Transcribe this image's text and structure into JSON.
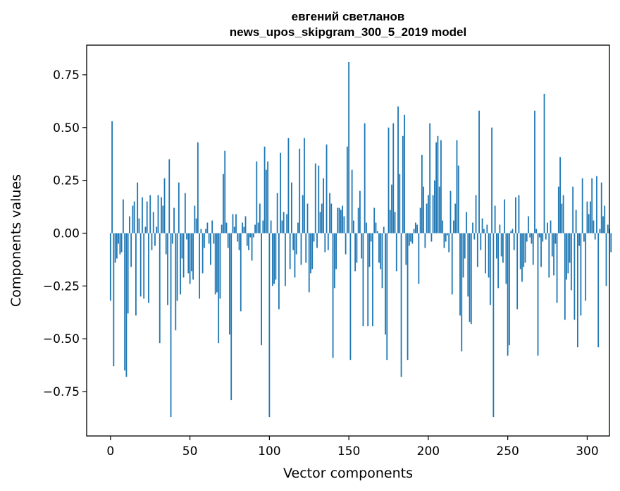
{
  "chart_data": {
    "type": "bar",
    "title_lines": [
      "евгений светланов",
      "news_upos_skipgram_300_5_2019 model"
    ],
    "xlabel": "Vector components",
    "ylabel": "Components values",
    "xlim": [
      -15,
      314
    ],
    "ylim": [
      -0.96,
      0.89
    ],
    "xticks": [
      0,
      50,
      100,
      150,
      200,
      250,
      300
    ],
    "xtick_labels": [
      "0",
      "50",
      "100",
      "150",
      "200",
      "250",
      "300"
    ],
    "yticks": [
      -0.75,
      -0.5,
      -0.25,
      0.0,
      0.25,
      0.5,
      0.75
    ],
    "ytick_labels": [
      "−0.75",
      "−0.50",
      "−0.25",
      "0.00",
      "0.25",
      "0.50",
      "0.75"
    ],
    "bar_color": "#1f77b4",
    "bar_width": 0.8,
    "values": [
      -0.32,
      0.53,
      -0.63,
      -0.14,
      -0.12,
      -0.05,
      -0.1,
      -0.09,
      0.16,
      -0.65,
      -0.68,
      -0.38,
      0.08,
      -0.16,
      0.13,
      0.15,
      -0.39,
      0.24,
      0.07,
      -0.3,
      0.17,
      -0.31,
      0.03,
      0.15,
      -0.33,
      0.18,
      -0.08,
      0.1,
      -0.06,
      0.03,
      0.18,
      -0.52,
      0.17,
      0.13,
      0.26,
      -0.1,
      -0.34,
      0.35,
      -0.87,
      -0.05,
      0.12,
      -0.46,
      -0.32,
      0.24,
      -0.29,
      -0.12,
      -0.21,
      0.19,
      -0.03,
      -0.19,
      -0.24,
      -0.18,
      -0.22,
      0.13,
      0.07,
      0.43,
      -0.31,
      0.02,
      -0.19,
      -0.07,
      0.02,
      0.05,
      -0.05,
      -0.15,
      0.06,
      -0.05,
      -0.29,
      -0.28,
      -0.52,
      -0.31,
      0.04,
      0.28,
      0.39,
      0.05,
      -0.07,
      -0.48,
      -0.79,
      0.09,
      0.03,
      0.09,
      -0.04,
      -0.08,
      -0.37,
      0.05,
      0.03,
      0.08,
      -0.06,
      -0.08,
      -0.02,
      -0.13,
      -0.02,
      0.04,
      0.34,
      0.05,
      0.14,
      -0.53,
      0.06,
      0.41,
      0.3,
      0.34,
      -0.87,
      0.06,
      -0.25,
      -0.24,
      -0.22,
      0.19,
      -0.36,
      0.38,
      0.06,
      0.1,
      -0.25,
      0.09,
      0.45,
      -0.17,
      0.24,
      -0.08,
      -0.21,
      -0.1,
      0.05,
      0.4,
      -0.15,
      0.18,
      0.45,
      -0.14,
      0.14,
      -0.28,
      -0.19,
      -0.17,
      -0.04,
      0.33,
      -0.07,
      0.32,
      0.1,
      0.14,
      0.26,
      -0.09,
      0.42,
      -0.08,
      0.19,
      0.14,
      -0.59,
      -0.26,
      -0.17,
      0.12,
      0.12,
      0.11,
      0.13,
      0.08,
      -0.1,
      0.41,
      0.81,
      -0.6,
      0.3,
      0.06,
      -0.18,
      -0.14,
      0.12,
      0.2,
      -0.12,
      -0.44,
      0.52,
      0.05,
      -0.44,
      -0.16,
      -0.04,
      -0.44,
      0.12,
      0.05,
      0.01,
      -0.14,
      -0.17,
      -0.26,
      0.03,
      -0.48,
      -0.6,
      0.5,
      0.11,
      0.23,
      0.52,
      0.1,
      -0.18,
      0.6,
      0.28,
      -0.68,
      0.46,
      0.56,
      -0.15,
      -0.6,
      -0.06,
      -0.04,
      -0.05,
      0.02,
      0.05,
      0.04,
      -0.24,
      0.12,
      0.37,
      0.22,
      -0.07,
      0.14,
      0.18,
      0.52,
      -0.04,
      0.18,
      0.25,
      0.43,
      0.46,
      0.22,
      0.44,
      0.06,
      -0.07,
      -0.04,
      -0.01,
      -0.09,
      0.2,
      -0.29,
      0.06,
      0.14,
      0.44,
      0.32,
      -0.39,
      -0.56,
      -0.21,
      -0.12,
      0.1,
      -0.3,
      -0.42,
      -0.43,
      0.05,
      -0.03,
      0.18,
      -0.16,
      0.58,
      -0.08,
      0.07,
      0.02,
      -0.19,
      0.04,
      -0.21,
      -0.34,
      0.5,
      -0.87,
      0.13,
      -0.12,
      -0.26,
      0.04,
      -0.11,
      -0.14,
      0.16,
      -0.24,
      -0.58,
      -0.53,
      0.01,
      0.02,
      -0.08,
      0.17,
      -0.36,
      0.18,
      -0.17,
      -0.23,
      -0.16,
      -0.14,
      -0.04,
      0.08,
      -0.02,
      -0.05,
      -0.15,
      0.58,
      0.02,
      -0.58,
      -0.02,
      -0.16,
      -0.04,
      0.66,
      -0.03,
      0.05,
      -0.21,
      0.06,
      -0.11,
      -0.2,
      -0.05,
      -0.33,
      0.22,
      0.36,
      0.14,
      0.18,
      -0.41,
      -0.22,
      -0.19,
      -0.14,
      -0.27,
      0.22,
      -0.41,
      0.11,
      -0.54,
      -0.06,
      -0.39,
      0.26,
      -0.04,
      -0.32,
      0.15,
      0.09,
      0.15,
      0.26,
      0.06,
      -0.03,
      0.27,
      -0.54,
      0.02,
      0.24,
      0.08,
      0.13,
      -0.25,
      0.04,
      0.02,
      -0.09
    ]
  }
}
